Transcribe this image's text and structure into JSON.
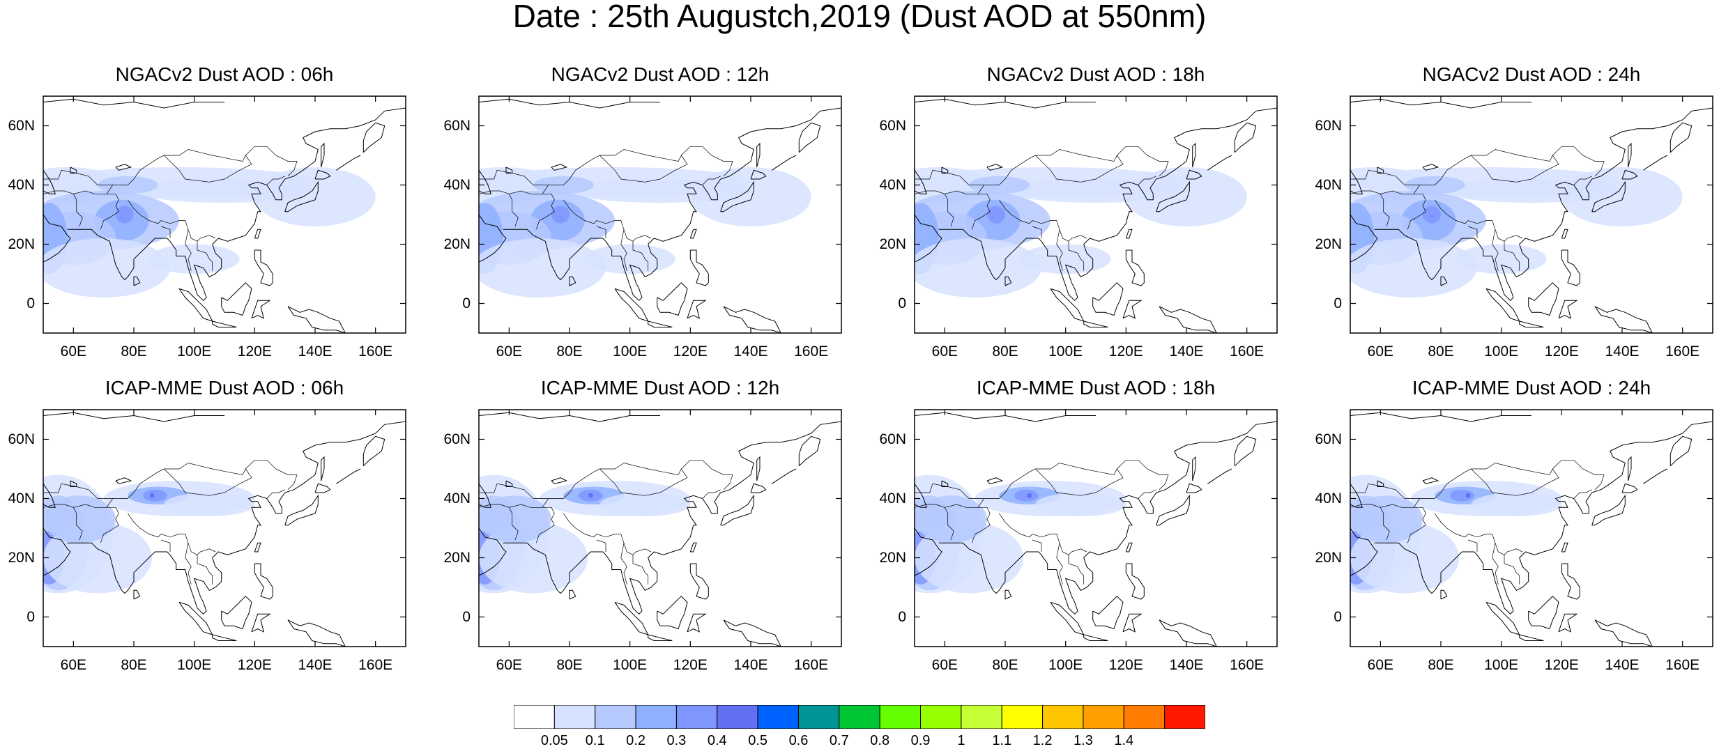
{
  "title": "Date : 25th Augustch,2019 (Dust AOD at 550nm)",
  "panels": [
    {
      "title": "NGACv2 Dust AOD : 06h"
    },
    {
      "title": "NGACv2 Dust AOD : 12h"
    },
    {
      "title": "NGACv2 Dust AOD : 18h"
    },
    {
      "title": "NGACv2 Dust AOD : 24h"
    },
    {
      "title": "ICAP-MME Dust AOD : 06h"
    },
    {
      "title": "ICAP-MME Dust AOD : 12h"
    },
    {
      "title": "ICAP-MME Dust AOD : 18h"
    },
    {
      "title": "ICAP-MME Dust AOD : 24h"
    }
  ],
  "axes": {
    "lon_range": [
      50,
      170
    ],
    "lat_range": [
      -10,
      70
    ],
    "xticks": [
      "60E",
      "80E",
      "100E",
      "120E",
      "140E",
      "160E"
    ],
    "xtick_values": [
      60,
      80,
      100,
      120,
      140,
      160
    ],
    "yticks": [
      "60N",
      "40N",
      "20N",
      "0"
    ],
    "ytick_values": [
      60,
      40,
      20,
      0
    ]
  },
  "colorbar": {
    "colors": [
      "#ffffff",
      "#d6e2ff",
      "#b5c9ff",
      "#8fb0ff",
      "#7f96ff",
      "#6370f5",
      "#0063ff",
      "#009696",
      "#00c633",
      "#63ff00",
      "#96ff00",
      "#c6ff33",
      "#ffff00",
      "#ffc600",
      "#ffa000",
      "#ff7c00",
      "#ff1900"
    ],
    "labels": [
      "0.05",
      "0.1",
      "0.2",
      "0.3",
      "0.4",
      "0.5",
      "0.6",
      "0.7",
      "0.8",
      "0.9",
      "1",
      "1.1",
      "1.2",
      "1.3",
      "1.4"
    ]
  }
}
